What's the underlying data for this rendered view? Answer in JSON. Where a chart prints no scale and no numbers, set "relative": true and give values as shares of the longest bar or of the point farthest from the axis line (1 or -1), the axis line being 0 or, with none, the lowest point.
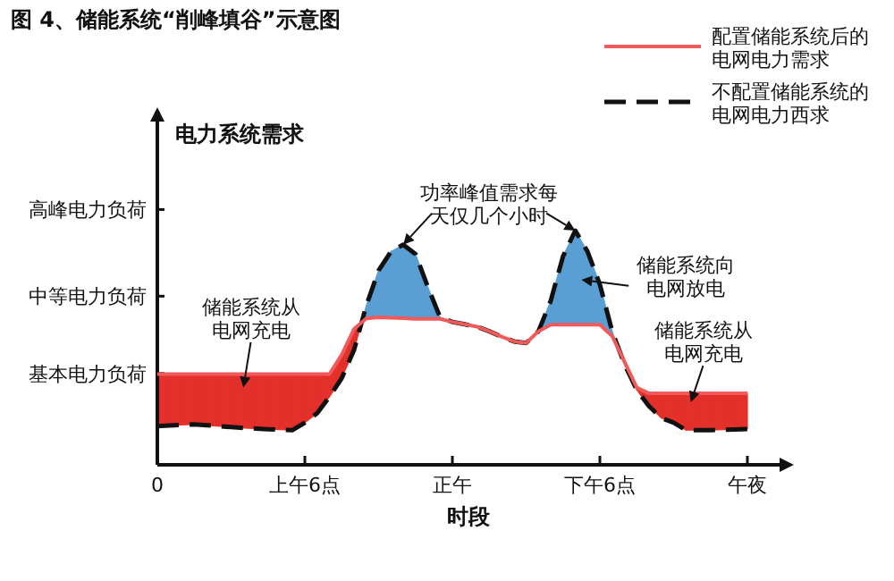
{
  "chart_data": {
    "type": "line",
    "title": "图 4、储能系统“削峰填谷”示意图",
    "xlabel": "时段",
    "ylabel": "电力系统需求",
    "relative": true,
    "categories": [
      "0",
      null,
      null,
      null,
      null,
      null,
      null,
      null,
      null,
      null,
      null,
      null,
      "上午6点",
      null,
      null,
      null,
      null,
      null,
      null,
      null,
      null,
      null,
      null,
      null,
      "正午",
      null,
      null,
      null,
      null,
      null,
      null,
      null,
      null,
      null,
      null,
      null,
      "下午6点",
      null,
      null,
      null,
      null,
      null,
      null,
      null,
      null,
      null,
      null,
      null,
      "午夜"
    ],
    "ref_lines": [
      {
        "axis": "y",
        "value": 0.39,
        "label": "基本电力负荷"
      },
      {
        "axis": "y",
        "value": 0.72,
        "label": "中等电力负荷"
      },
      {
        "axis": "y",
        "value": 1.09,
        "label": "高峰电力负荷"
      }
    ],
    "legend": "top right",
    "series": [
      {
        "name": "配置储能系统后的电网电力需求",
        "color": "#f05a5a",
        "line_style": "solid",
        "values": [
          0.387,
          0.387,
          0.387,
          0.387,
          0.387,
          0.387,
          0.387,
          0.387,
          0.387,
          0.387,
          0.387,
          0.387,
          0.387,
          0.387,
          0.387,
          0.47,
          0.58,
          0.625,
          0.63,
          0.628,
          0.626,
          0.623,
          0.623,
          0.623,
          0.61,
          0.6,
          0.59,
          0.57,
          0.547,
          0.527,
          0.52,
          0.57,
          0.598,
          0.598,
          0.598,
          0.598,
          0.598,
          0.55,
          0.44,
          0.33,
          0.305,
          0.305,
          0.305,
          0.305,
          0.305,
          0.305,
          0.305,
          0.305,
          0.305
        ]
      },
      {
        "name": "不配置储能系统的电网电力西求",
        "color": "#111111",
        "line_style": "dashed",
        "values": [
          0.165,
          0.168,
          0.17,
          0.173,
          0.169,
          0.165,
          0.161,
          0.157,
          0.155,
          0.152,
          0.15,
          0.148,
          0.18,
          0.22,
          0.29,
          0.37,
          0.49,
          0.68,
          0.83,
          0.91,
          0.94,
          0.9,
          0.76,
          0.63,
          0.61,
          0.6,
          0.59,
          0.57,
          0.547,
          0.527,
          0.52,
          0.57,
          0.7,
          0.89,
          1.0,
          0.91,
          0.77,
          0.57,
          0.43,
          0.32,
          0.25,
          0.2,
          0.18,
          0.148,
          0.148,
          0.148,
          0.15,
          0.151,
          0.153
        ]
      }
    ],
    "annotations": [
      "功率峰值需求每天仅几个小时",
      "储能系统从电网充电",
      "储能系统向电网放电",
      "储能系统从电网充电"
    ]
  }
}
